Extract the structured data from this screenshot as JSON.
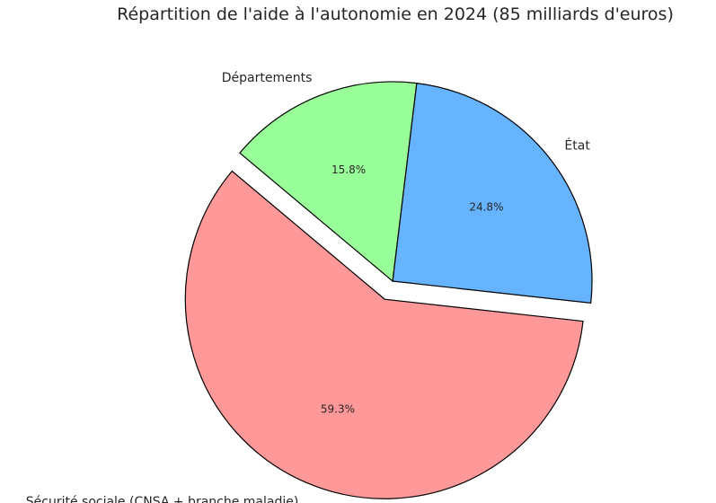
{
  "chart_data": {
    "type": "pie",
    "title": "Répartition de l'aide à l'autonomie en 2024 (85 milliards d'euros)",
    "categories": [
      "Sécurité sociale (CNSA + branche maladie)",
      "État",
      "Départements"
    ],
    "values": [
      59.3,
      24.8,
      15.8
    ],
    "value_labels": [
      "59.3%",
      "24.8%",
      "15.8%"
    ],
    "colors": [
      "#ff9999",
      "#66b3ff",
      "#99ff99"
    ],
    "exploded": [
      true,
      false,
      false
    ],
    "start_angle_deg": 140,
    "direction": "counterclockwise",
    "legend": "none"
  }
}
